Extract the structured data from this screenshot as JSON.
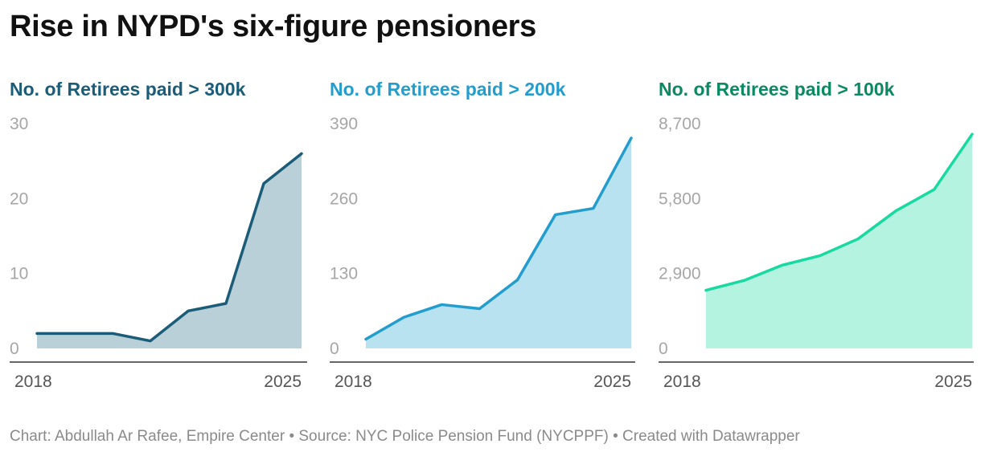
{
  "title": "Rise in NYPD's six-figure pensioners",
  "footer": "Chart: Abdullah Ar Rafee, Empire Center • Source: NYC Police Pension Fund (NYCPPF) • Created with Datawrapper",
  "chart_data": [
    {
      "type": "area",
      "title": "No. of Retirees paid > 300k",
      "x": [
        2018,
        2019,
        2020,
        2021,
        2022,
        2023,
        2024,
        2025
      ],
      "x_tick_labels": [
        "2018",
        "2025"
      ],
      "values": [
        2,
        2,
        2,
        1,
        5,
        6,
        22,
        26
      ],
      "y_ticks": [
        "30",
        "20",
        "10",
        "0"
      ],
      "ylim": [
        0,
        30
      ],
      "line_color": "#1b5d78",
      "fill_color": "#b9d0d8",
      "title_color": "#1b5d78"
    },
    {
      "type": "area",
      "title": "No. of Retirees paid > 200k",
      "x": [
        2018,
        2019,
        2020,
        2021,
        2022,
        2023,
        2024,
        2025
      ],
      "x_tick_labels": [
        "2018",
        "2025"
      ],
      "values": [
        16,
        54,
        76,
        69,
        119,
        232,
        243,
        365
      ],
      "y_ticks": [
        "390",
        "260",
        "130",
        "0"
      ],
      "ylim": [
        0,
        390
      ],
      "line_color": "#239dce",
      "fill_color": "#b9e2f0",
      "title_color": "#239dce"
    },
    {
      "type": "area",
      "title": "No. of Retirees paid > 100k",
      "x": [
        2018,
        2019,
        2020,
        2021,
        2022,
        2023,
        2024,
        2025
      ],
      "x_tick_labels": [
        "2018",
        "2025"
      ],
      "values": [
        2250,
        2630,
        3220,
        3590,
        4240,
        5330,
        6150,
        8290
      ],
      "y_ticks": [
        "8,700",
        "5,800",
        "2,900",
        "0"
      ],
      "ylim": [
        0,
        8700
      ],
      "line_color": "#18d9a1",
      "fill_color": "#b3f3e0",
      "title_color": "#0a8a62"
    }
  ]
}
